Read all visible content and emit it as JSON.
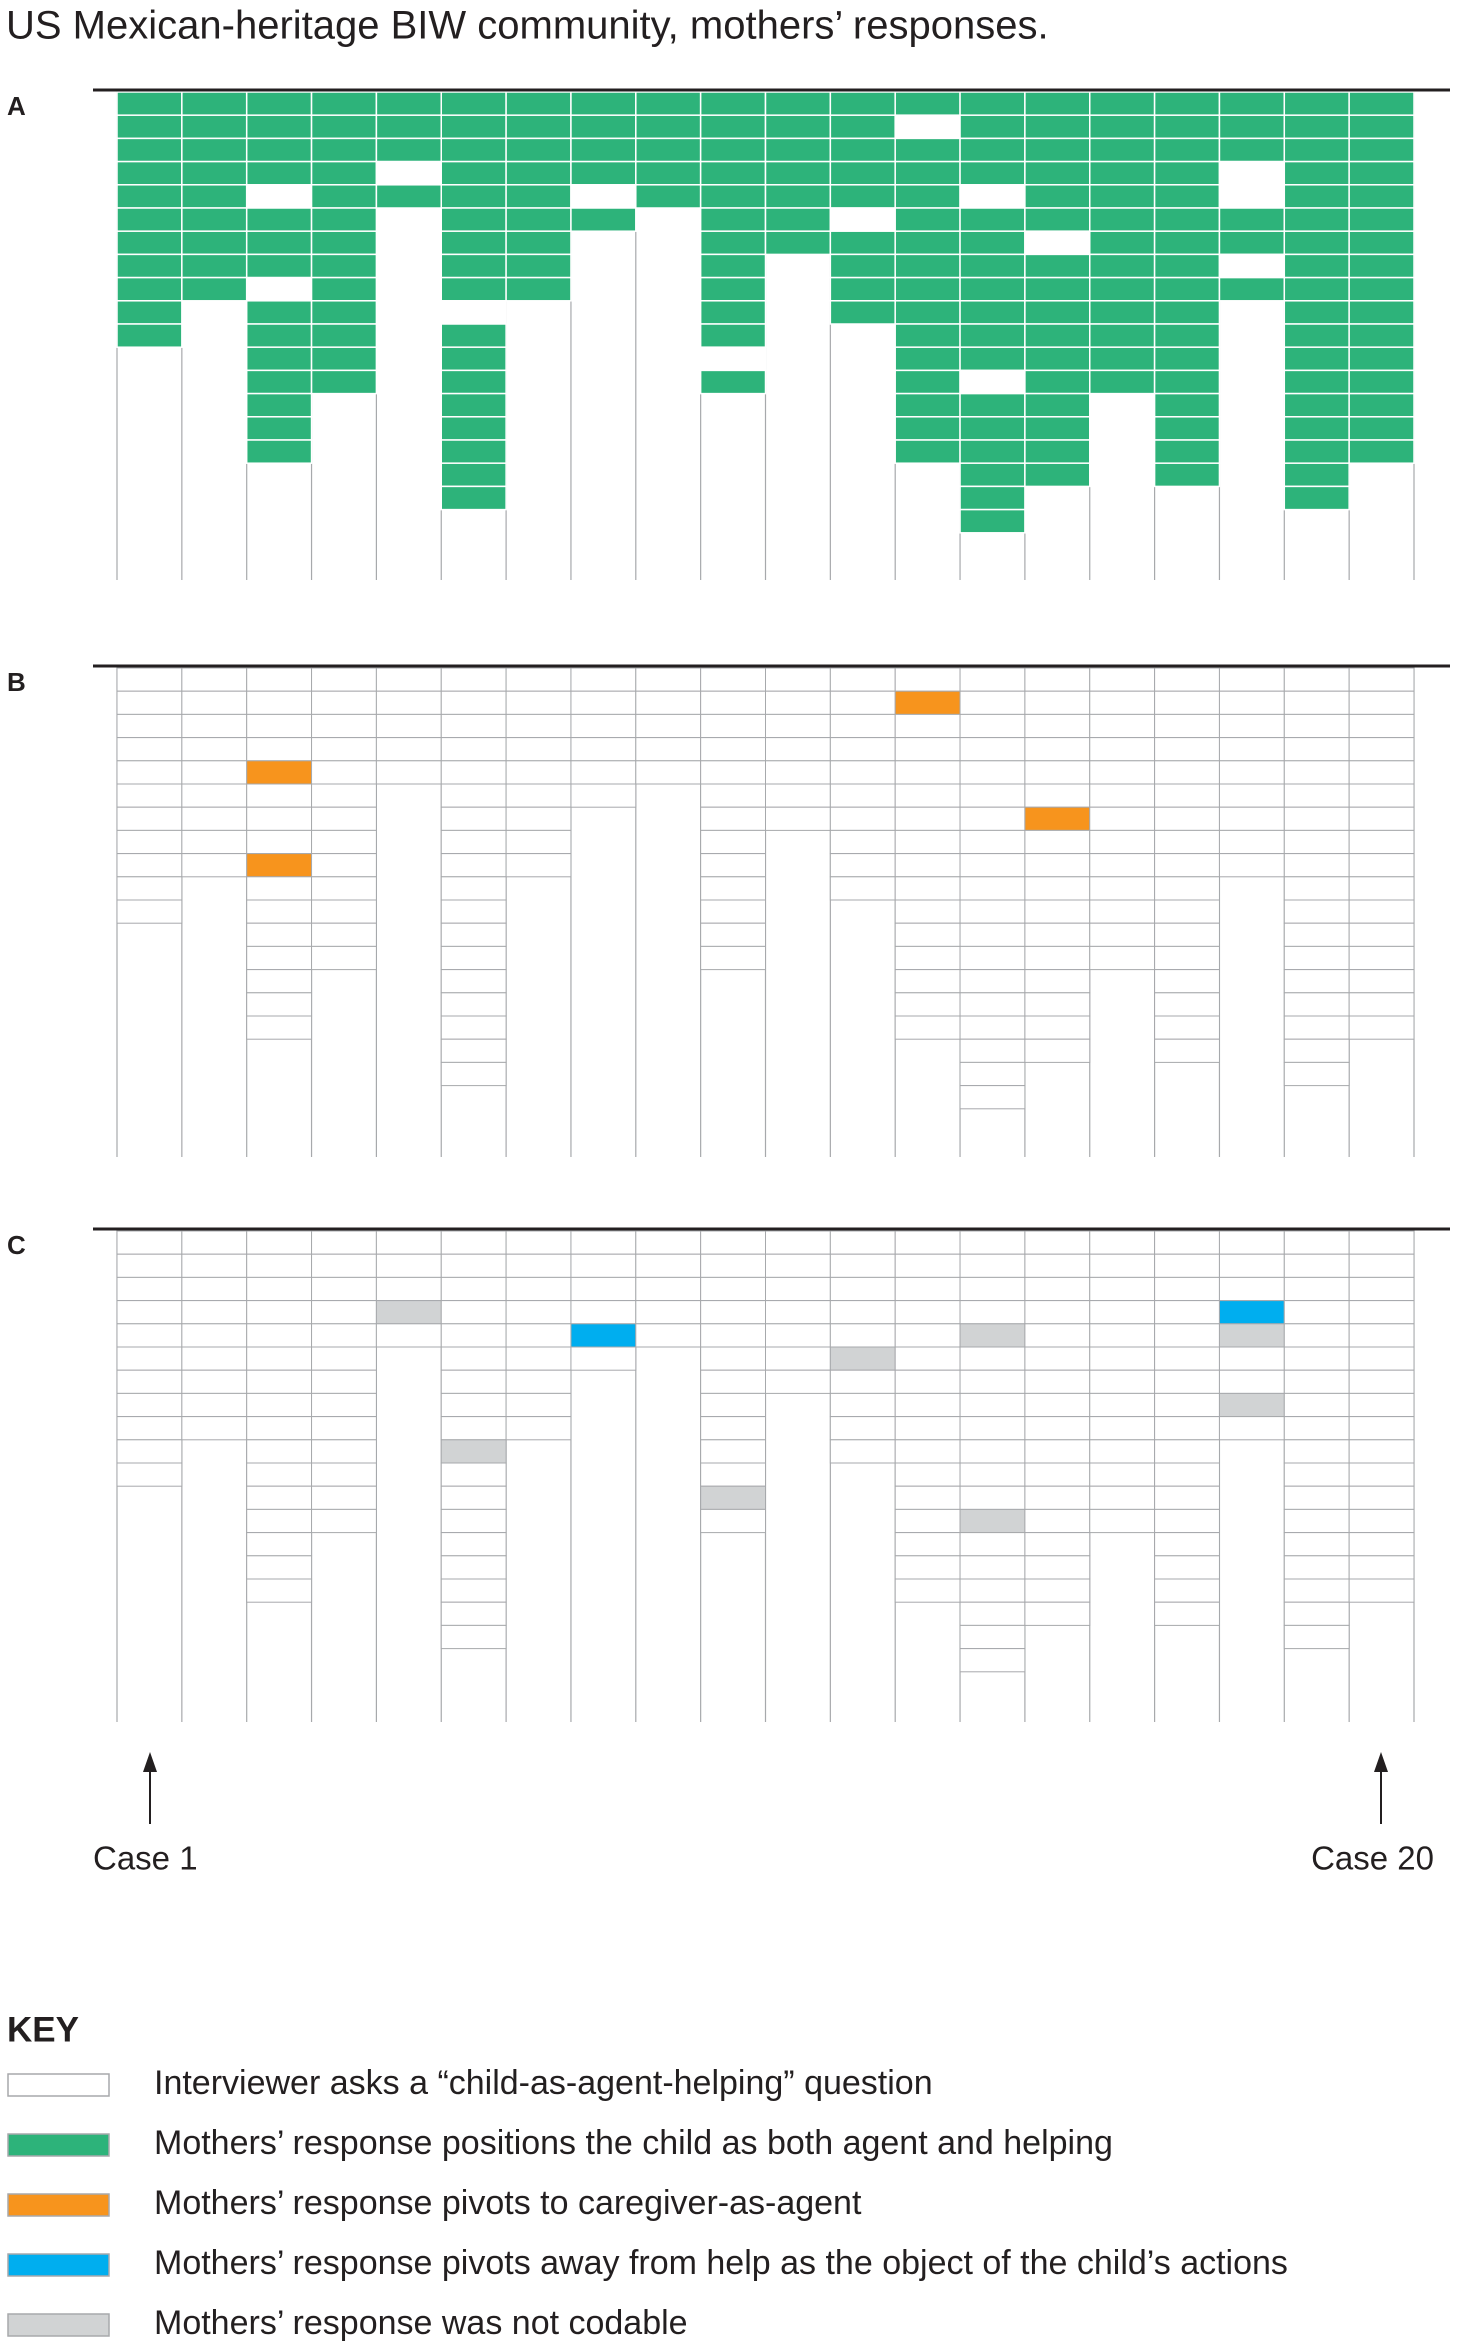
{
  "title": "US Mexican-heritage BIW community, mothers’ responses.",
  "panels": [
    {
      "label": "A",
      "shows": [
        1
      ]
    },
    {
      "label": "B",
      "shows": [
        2
      ]
    },
    {
      "label": "C",
      "shows": [
        3,
        4
      ]
    }
  ],
  "cases": [
    {
      "codes": [
        1,
        1,
        1,
        1,
        1,
        1,
        1,
        1,
        1,
        1,
        1
      ]
    },
    {
      "codes": [
        1,
        1,
        1,
        1,
        1,
        1,
        1,
        1,
        1
      ]
    },
    {
      "codes": [
        1,
        1,
        1,
        1,
        2,
        1,
        1,
        1,
        2,
        1,
        1,
        1,
        1,
        1,
        1,
        1
      ]
    },
    {
      "codes": [
        1,
        1,
        1,
        1,
        1,
        1,
        1,
        1,
        1,
        1,
        1,
        1,
        1
      ]
    },
    {
      "codes": [
        1,
        1,
        1,
        4,
        1
      ]
    },
    {
      "codes": [
        1,
        1,
        1,
        1,
        1,
        1,
        1,
        1,
        1,
        4,
        1,
        1,
        1,
        1,
        1,
        1,
        1,
        1
      ]
    },
    {
      "codes": [
        1,
        1,
        1,
        1,
        1,
        1,
        1,
        1,
        1
      ]
    },
    {
      "codes": [
        1,
        1,
        1,
        1,
        3,
        1
      ]
    },
    {
      "codes": [
        1,
        1,
        1,
        1,
        1
      ]
    },
    {
      "codes": [
        1,
        1,
        1,
        1,
        1,
        1,
        1,
        1,
        1,
        1,
        1,
        4,
        1
      ]
    },
    {
      "codes": [
        1,
        1,
        1,
        1,
        1,
        1,
        1
      ]
    },
    {
      "codes": [
        1,
        1,
        1,
        1,
        1,
        4,
        1,
        1,
        1,
        1
      ]
    },
    {
      "codes": [
        1,
        2,
        1,
        1,
        1,
        1,
        1,
        1,
        1,
        1,
        1,
        1,
        1,
        1,
        1,
        1
      ]
    },
    {
      "codes": [
        1,
        1,
        1,
        1,
        4,
        1,
        1,
        1,
        1,
        1,
        1,
        1,
        4,
        1,
        1,
        1,
        1,
        1,
        1
      ]
    },
    {
      "codes": [
        1,
        1,
        1,
        1,
        1,
        1,
        2,
        1,
        1,
        1,
        1,
        1,
        1,
        1,
        1,
        1,
        1
      ]
    },
    {
      "codes": [
        1,
        1,
        1,
        1,
        1,
        1,
        1,
        1,
        1,
        1,
        1,
        1,
        1
      ]
    },
    {
      "codes": [
        1,
        1,
        1,
        1,
        1,
        1,
        1,
        1,
        1,
        1,
        1,
        1,
        1,
        1,
        1,
        1,
        1
      ]
    },
    {
      "codes": [
        1,
        1,
        1,
        3,
        4,
        1,
        1,
        4,
        1
      ]
    },
    {
      "codes": [
        1,
        1,
        1,
        1,
        1,
        1,
        1,
        1,
        1,
        1,
        1,
        1,
        1,
        1,
        1,
        1,
        1,
        1
      ]
    },
    {
      "codes": [
        1,
        1,
        1,
        1,
        1,
        1,
        1,
        1,
        1,
        1,
        1,
        1,
        1,
        1,
        1,
        1
      ]
    }
  ],
  "case_labels": [
    "Case 1",
    "Case 20"
  ],
  "key": {
    "title": "KEY",
    "items": [
      {
        "label": "Interviewer asks a “child-as-agent-helping” question",
        "color": "#ffffff"
      },
      {
        "label": "Mothers’ response positions the child as both agent and helping",
        "color": "#2db37a"
      },
      {
        "label": "Mothers’ response pivots to caregiver-as-agent",
        "color": "#f7941d"
      },
      {
        "label": "Mothers’ response pivots away from help as the object of the child’s actions",
        "color": "#00aeef"
      },
      {
        "label": "Mothers’ response was not codable",
        "color": "#d1d3d4"
      }
    ]
  }
}
